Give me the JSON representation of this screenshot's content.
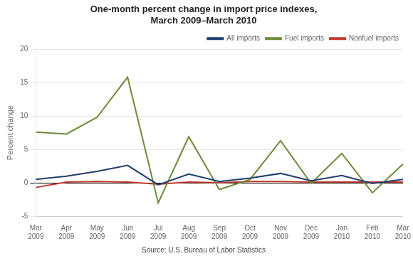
{
  "chart_data": {
    "type": "line",
    "title": "One-month percent change in import price indexes,\nMarch 2009–March 2010",
    "y_label": "Percent change",
    "annotations": [
      "Source: U.S. Bureau of Labor Statistics"
    ],
    "categories": [
      "Mar\n2009",
      "Apr\n2009",
      "May\n2009",
      "Jun\n2009",
      "Jul\n2009",
      "Aug\n2009",
      "Sep\n2009",
      "Oct\n2009",
      "Nov\n2009",
      "Dec\n2009",
      "Jan\n2010",
      "Feb\n2010",
      "Mar\n2010"
    ],
    "series": [
      {
        "name": "All imports",
        "color": "#1f3d6e",
        "values": [
          0.5,
          1.0,
          1.7,
          2.6,
          -0.3,
          1.3,
          0.2,
          0.7,
          1.4,
          0.3,
          1.1,
          -0.1,
          0.5
        ]
      },
      {
        "name": "Fuel imports",
        "color": "#6d8b3a",
        "values": [
          7.6,
          7.3,
          9.8,
          15.8,
          -3.0,
          6.9,
          -1.0,
          0.5,
          6.3,
          -0.1,
          4.4,
          -1.5,
          2.8
        ]
      },
      {
        "name": "Nonfuel imports",
        "color": "#c0392b",
        "values": [
          -0.7,
          0.1,
          0.2,
          0.1,
          -0.2,
          0.1,
          0.0,
          0.2,
          0.2,
          0.1,
          0.1,
          0.1,
          0.1
        ]
      }
    ],
    "ylim": [
      -5,
      20
    ],
    "yticks": [
      -5,
      0,
      5,
      10,
      15,
      20
    ],
    "grid": true,
    "legend": "upper right"
  }
}
